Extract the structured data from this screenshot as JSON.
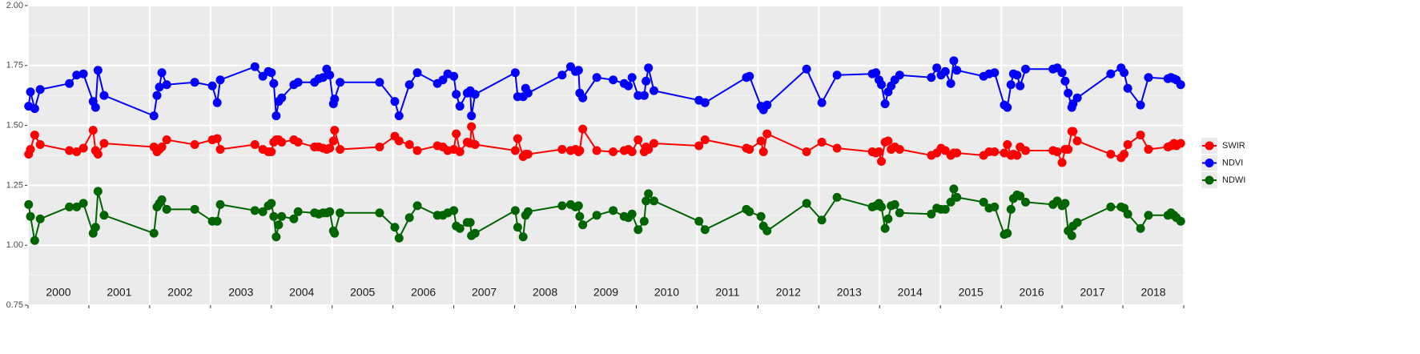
{
  "chart_data": {
    "type": "line",
    "x": [
      2000.01,
      2000.04,
      2000.11,
      2000.2,
      2000.68,
      2000.8,
      2000.91,
      2001.07,
      2001.11,
      2001.15,
      2001.25,
      2002.07,
      2002.12,
      2002.16,
      2002.2,
      2002.28,
      2002.74,
      2003.03,
      2003.11,
      2003.16,
      2003.73,
      2003.86,
      2003.95,
      2004.0,
      2004.04,
      2004.08,
      2004.12,
      2004.17,
      2004.37,
      2004.44,
      2004.71,
      2004.78,
      2004.85,
      2004.91,
      2004.96,
      2005.02,
      2005.04,
      2005.13,
      2005.78,
      2006.03,
      2006.1,
      2006.27,
      2006.4,
      2006.73,
      2006.82,
      2006.9,
      2007.0,
      2007.04,
      2007.1,
      2007.22,
      2007.27,
      2007.29,
      2007.35,
      2008.01,
      2008.05,
      2008.14,
      2008.18,
      2008.22,
      2008.78,
      2008.92,
      2009.0,
      2009.05,
      2009.07,
      2009.12,
      2009.35,
      2009.62,
      2009.8,
      2009.87,
      2009.93,
      2010.03,
      2010.13,
      2010.16,
      2010.2,
      2010.29,
      2011.03,
      2011.13,
      2011.81,
      2011.86,
      2012.05,
      2012.09,
      2012.15,
      2012.8,
      2013.05,
      2013.3,
      2013.88,
      2013.94,
      2013.99,
      2014.03,
      2014.09,
      2014.14,
      2014.19,
      2014.25,
      2014.33,
      2014.85,
      2014.94,
      2015.01,
      2015.08,
      2015.17,
      2015.22,
      2015.27,
      2015.71,
      2015.8,
      2015.89,
      2016.05,
      2016.1,
      2016.16,
      2016.2,
      2016.26,
      2016.31,
      2016.4,
      2016.85,
      2016.92,
      2017.0,
      2017.05,
      2017.1,
      2017.16,
      2017.18,
      2017.25,
      2017.8,
      2017.97,
      2018.02,
      2018.08,
      2018.29,
      2018.42,
      2018.74,
      2018.79,
      2018.84,
      2018.88,
      2018.95
    ],
    "series": [
      {
        "name": "SWIR",
        "color": "#ff0000",
        "values": [
          1.38,
          1.4,
          1.46,
          1.42,
          1.395,
          1.39,
          1.405,
          1.48,
          1.395,
          1.38,
          1.425,
          1.41,
          1.39,
          1.4,
          1.41,
          1.44,
          1.42,
          1.44,
          1.445,
          1.4,
          1.42,
          1.4,
          1.39,
          1.39,
          1.43,
          1.44,
          1.44,
          1.43,
          1.44,
          1.43,
          1.41,
          1.41,
          1.405,
          1.4,
          1.405,
          1.435,
          1.48,
          1.4,
          1.41,
          1.455,
          1.435,
          1.42,
          1.395,
          1.415,
          1.41,
          1.395,
          1.4,
          1.465,
          1.39,
          1.43,
          1.425,
          1.495,
          1.42,
          1.395,
          1.445,
          1.37,
          1.38,
          1.38,
          1.4,
          1.395,
          1.4,
          1.39,
          1.395,
          1.485,
          1.395,
          1.39,
          1.395,
          1.4,
          1.39,
          1.44,
          1.39,
          1.41,
          1.4,
          1.425,
          1.415,
          1.44,
          1.405,
          1.4,
          1.435,
          1.39,
          1.465,
          1.39,
          1.43,
          1.405,
          1.39,
          1.385,
          1.39,
          1.35,
          1.43,
          1.435,
          1.4,
          1.41,
          1.4,
          1.375,
          1.385,
          1.405,
          1.395,
          1.375,
          1.385,
          1.385,
          1.375,
          1.39,
          1.39,
          1.385,
          1.42,
          1.375,
          1.38,
          1.375,
          1.41,
          1.395,
          1.395,
          1.39,
          1.345,
          1.4,
          1.4,
          1.475,
          1.475,
          1.435,
          1.38,
          1.365,
          1.38,
          1.42,
          1.46,
          1.4,
          1.41,
          1.415,
          1.425,
          1.415,
          1.425
        ]
      },
      {
        "name": "NDVI",
        "color": "#0000ff",
        "values": [
          1.58,
          1.64,
          1.57,
          1.65,
          1.675,
          1.71,
          1.715,
          1.6,
          1.575,
          1.73,
          1.625,
          1.54,
          1.625,
          1.66,
          1.72,
          1.67,
          1.68,
          1.665,
          1.595,
          1.69,
          1.745,
          1.705,
          1.725,
          1.72,
          1.675,
          1.54,
          1.6,
          1.615,
          1.67,
          1.68,
          1.68,
          1.695,
          1.7,
          1.735,
          1.71,
          1.59,
          1.61,
          1.68,
          1.68,
          1.6,
          1.54,
          1.67,
          1.72,
          1.675,
          1.69,
          1.715,
          1.705,
          1.63,
          1.58,
          1.635,
          1.645,
          1.54,
          1.63,
          1.72,
          1.62,
          1.62,
          1.655,
          1.635,
          1.71,
          1.745,
          1.725,
          1.73,
          1.635,
          1.615,
          1.7,
          1.69,
          1.675,
          1.665,
          1.7,
          1.625,
          1.625,
          1.685,
          1.74,
          1.645,
          1.605,
          1.595,
          1.7,
          1.705,
          1.58,
          1.565,
          1.585,
          1.735,
          1.595,
          1.71,
          1.715,
          1.72,
          1.69,
          1.67,
          1.59,
          1.64,
          1.665,
          1.69,
          1.71,
          1.7,
          1.74,
          1.71,
          1.725,
          1.675,
          1.77,
          1.73,
          1.705,
          1.715,
          1.72,
          1.585,
          1.575,
          1.67,
          1.715,
          1.71,
          1.665,
          1.735,
          1.735,
          1.74,
          1.72,
          1.685,
          1.635,
          1.575,
          1.59,
          1.615,
          1.715,
          1.74,
          1.72,
          1.655,
          1.585,
          1.7,
          1.695,
          1.7,
          1.695,
          1.69,
          1.67
        ]
      },
      {
        "name": "NDWI",
        "color": "#006400",
        "values": [
          1.17,
          1.12,
          1.02,
          1.11,
          1.16,
          1.16,
          1.175,
          1.05,
          1.075,
          1.225,
          1.125,
          1.05,
          1.16,
          1.175,
          1.19,
          1.15,
          1.15,
          1.1,
          1.1,
          1.17,
          1.145,
          1.14,
          1.165,
          1.175,
          1.12,
          1.035,
          1.085,
          1.12,
          1.11,
          1.14,
          1.135,
          1.13,
          1.135,
          1.135,
          1.14,
          1.06,
          1.05,
          1.135,
          1.135,
          1.075,
          1.03,
          1.115,
          1.165,
          1.125,
          1.125,
          1.135,
          1.145,
          1.08,
          1.07,
          1.095,
          1.095,
          1.04,
          1.05,
          1.145,
          1.075,
          1.035,
          1.125,
          1.14,
          1.165,
          1.17,
          1.16,
          1.165,
          1.12,
          1.085,
          1.125,
          1.145,
          1.12,
          1.115,
          1.13,
          1.065,
          1.1,
          1.185,
          1.215,
          1.185,
          1.1,
          1.065,
          1.15,
          1.14,
          1.12,
          1.08,
          1.06,
          1.175,
          1.105,
          1.2,
          1.16,
          1.165,
          1.175,
          1.16,
          1.07,
          1.11,
          1.165,
          1.17,
          1.135,
          1.13,
          1.155,
          1.15,
          1.15,
          1.18,
          1.235,
          1.2,
          1.18,
          1.155,
          1.16,
          1.045,
          1.05,
          1.15,
          1.195,
          1.21,
          1.205,
          1.18,
          1.17,
          1.185,
          1.165,
          1.175,
          1.06,
          1.04,
          1.08,
          1.095,
          1.16,
          1.16,
          1.155,
          1.13,
          1.07,
          1.125,
          1.125,
          1.135,
          1.125,
          1.115,
          1.1
        ]
      }
    ],
    "xlim": [
      2000,
      2019
    ],
    "xticks": [
      2000,
      2001,
      2002,
      2003,
      2004,
      2005,
      2006,
      2007,
      2008,
      2009,
      2010,
      2011,
      2012,
      2013,
      2014,
      2015,
      2016,
      2017,
      2018,
      2019
    ],
    "year_labels": [
      {
        "value": 2000.5,
        "label": "2000"
      },
      {
        "value": 2001.5,
        "label": "2001"
      },
      {
        "value": 2002.5,
        "label": "2002"
      },
      {
        "value": 2003.5,
        "label": "2003"
      },
      {
        "value": 2004.5,
        "label": "2004"
      },
      {
        "value": 2005.5,
        "label": "2005"
      },
      {
        "value": 2006.5,
        "label": "2006"
      },
      {
        "value": 2007.5,
        "label": "2007"
      },
      {
        "value": 2008.5,
        "label": "2008"
      },
      {
        "value": 2009.5,
        "label": "2009"
      },
      {
        "value": 2010.5,
        "label": "2010"
      },
      {
        "value": 2011.5,
        "label": "2011"
      },
      {
        "value": 2012.5,
        "label": "2012"
      },
      {
        "value": 2013.5,
        "label": "2013"
      },
      {
        "value": 2014.5,
        "label": "2014"
      },
      {
        "value": 2015.5,
        "label": "2015"
      },
      {
        "value": 2016.5,
        "label": "2016"
      },
      {
        "value": 2017.5,
        "label": "2017"
      },
      {
        "value": 2018.5,
        "label": "2018"
      }
    ],
    "ylim": [
      0.75,
      2.0
    ],
    "yticks": [
      {
        "value": 0.75,
        "label": "0.75"
      },
      {
        "value": 1.0,
        "label": "1.00"
      },
      {
        "value": 1.25,
        "label": "1.25"
      },
      {
        "value": 1.5,
        "label": "1.50"
      },
      {
        "value": 1.75,
        "label": "1.75"
      },
      {
        "value": 2.0,
        "label": "2.00"
      }
    ],
    "grid": true,
    "legend": "right"
  }
}
